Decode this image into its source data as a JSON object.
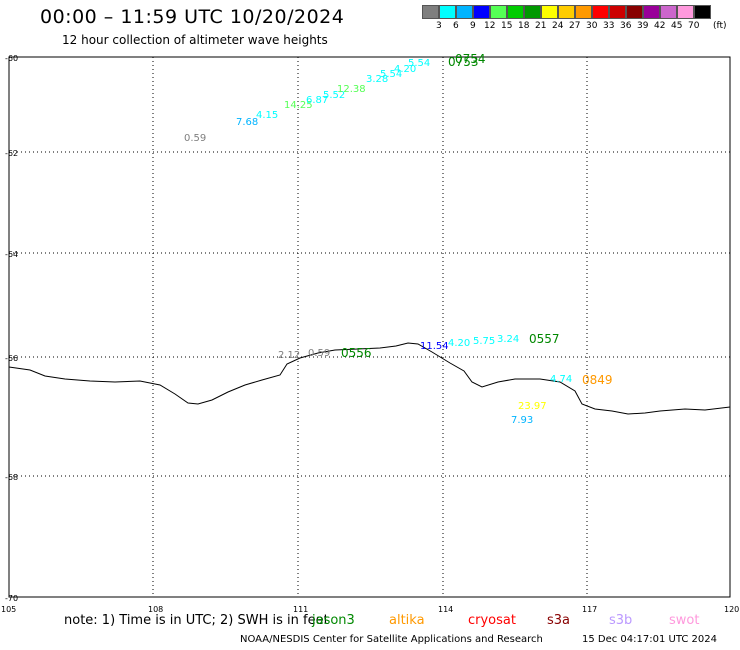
{
  "header": {
    "title": "00:00 – 11:59 UTC 10/20/2024",
    "subtitle": "12 hour collection of altimeter wave heights"
  },
  "legend": {
    "values": [
      "3",
      "6",
      "9",
      "12",
      "15",
      "18",
      "21",
      "24",
      "27",
      "30",
      "33",
      "36",
      "39",
      "42",
      "45",
      "70"
    ],
    "unit": "(ft)",
    "colors": [
      "#7f7f7f",
      "#00ffff",
      "#00b4ff",
      "#0000ff",
      "#55ff55",
      "#00cc00",
      "#009900",
      "#ffff00",
      "#ffcc00",
      "#ff9900",
      "#ff0000",
      "#cc0000",
      "#880000",
      "#990099",
      "#cc66cc",
      "#ff99dd",
      "#000000"
    ]
  },
  "axes": {
    "lat_labels": [
      "-60",
      "-62",
      "-64",
      "-66",
      "-68",
      "-70"
    ],
    "lon_labels": [
      "105",
      "108",
      "111",
      "114",
      "117",
      "120"
    ]
  },
  "passes": [
    {
      "label": "0754",
      "color": "#008800"
    },
    {
      "label": "0753",
      "color": "#008800"
    },
    {
      "label": "0556",
      "color": "#008800"
    },
    {
      "label": "0557",
      "color": "#008800"
    },
    {
      "label": "0849",
      "color": "#ff9900"
    }
  ],
  "wave_labels": [
    {
      "text": "0.59",
      "color": "#7f7f7f"
    },
    {
      "text": "7.68",
      "color": "#00b4ff"
    },
    {
      "text": "4.15",
      "color": "#00ffff"
    },
    {
      "text": "14.25",
      "color": "#55ff55"
    },
    {
      "text": "6.87",
      "color": "#00ffff"
    },
    {
      "text": "5.52",
      "color": "#00ffff"
    },
    {
      "text": "12.38",
      "color": "#55ff55"
    },
    {
      "text": "3.28",
      "color": "#00ffff"
    },
    {
      "text": "5.54",
      "color": "#00ffff"
    },
    {
      "text": "4.20",
      "color": "#00ffff"
    },
    {
      "text": "5.54",
      "color": "#00ffff"
    },
    {
      "text": "2.12",
      "color": "#7f7f7f"
    },
    {
      "text": "0.59",
      "color": "#7f7f7f"
    },
    {
      "text": "11.54",
      "color": "#0000ff"
    },
    {
      "text": "4.20",
      "color": "#00ffff"
    },
    {
      "text": "5.75",
      "color": "#00ffff"
    },
    {
      "text": "3.24",
      "color": "#00ffff"
    },
    {
      "text": "4.74",
      "color": "#00ffff"
    },
    {
      "text": "23.97",
      "color": "#ffff00"
    },
    {
      "text": "7.93",
      "color": "#00b4ff"
    }
  ],
  "footer": {
    "note": "note: 1) Time is in UTC; 2) SWH is in feet",
    "satellites": [
      {
        "name": "jason3",
        "color": "#008800"
      },
      {
        "name": "altika",
        "color": "#ff9900"
      },
      {
        "name": "cryosat",
        "color": "#ff0000"
      },
      {
        "name": "s3a",
        "color": "#880000"
      },
      {
        "name": "s3b",
        "color": "#bb99ff"
      },
      {
        "name": "swot",
        "color": "#ff99dd"
      }
    ],
    "credit": "NOAA/NESDIS Center for Satellite Applications and Research",
    "timestamp": "15 Dec 04:17:01 UTC 2024"
  }
}
